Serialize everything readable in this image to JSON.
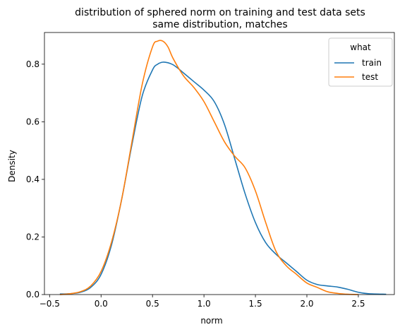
{
  "chart_data": {
    "type": "line",
    "title": "distribution of sphered norm on training and test data sets",
    "subtitle": "same distribution, matches",
    "xlabel": "norm",
    "ylabel": "Density",
    "xlim": [
      -0.55,
      2.85
    ],
    "ylim": [
      0,
      0.91
    ],
    "xticks": [
      -0.5,
      0.0,
      0.5,
      1.0,
      1.5,
      2.0,
      2.5
    ],
    "xtick_labels": [
      "−0.5",
      "0.0",
      "0.5",
      "1.0",
      "1.5",
      "2.0",
      "2.5"
    ],
    "yticks": [
      0.0,
      0.2,
      0.4,
      0.6,
      0.8
    ],
    "ytick_labels": [
      "0.0",
      "0.2",
      "0.4",
      "0.6",
      "0.8"
    ],
    "grid": false,
    "legend": {
      "title": "what",
      "placement": "top-right"
    },
    "series": [
      {
        "name": "train",
        "color": "#1f77b4",
        "x": [
          -0.4,
          -0.3,
          -0.2,
          -0.1,
          0.0,
          0.1,
          0.2,
          0.3,
          0.4,
          0.5,
          0.55,
          0.6,
          0.65,
          0.7,
          0.75,
          0.8,
          0.9,
          1.0,
          1.1,
          1.2,
          1.3,
          1.4,
          1.5,
          1.6,
          1.7,
          1.8,
          1.9,
          2.0,
          2.1,
          2.2,
          2.3,
          2.4,
          2.5,
          2.6,
          2.77
        ],
        "y": [
          0.002,
          0.003,
          0.008,
          0.025,
          0.07,
          0.17,
          0.33,
          0.52,
          0.69,
          0.78,
          0.8,
          0.807,
          0.805,
          0.798,
          0.785,
          0.77,
          0.74,
          0.71,
          0.67,
          0.59,
          0.47,
          0.35,
          0.25,
          0.18,
          0.14,
          0.11,
          0.08,
          0.05,
          0.035,
          0.03,
          0.026,
          0.018,
          0.008,
          0.003,
          0.001
        ]
      },
      {
        "name": "test",
        "color": "#ff7f0e",
        "x": [
          -0.4,
          -0.3,
          -0.2,
          -0.1,
          0.0,
          0.1,
          0.2,
          0.3,
          0.4,
          0.5,
          0.55,
          0.6,
          0.65,
          0.7,
          0.8,
          0.9,
          1.0,
          1.1,
          1.2,
          1.3,
          1.4,
          1.5,
          1.6,
          1.7,
          1.8,
          1.9,
          2.0,
          2.1,
          2.2,
          2.3,
          2.4,
          2.5
        ],
        "y": [
          0.0,
          0.003,
          0.01,
          0.03,
          0.08,
          0.18,
          0.33,
          0.53,
          0.73,
          0.86,
          0.88,
          0.88,
          0.86,
          0.82,
          0.76,
          0.72,
          0.67,
          0.6,
          0.53,
          0.48,
          0.44,
          0.36,
          0.25,
          0.15,
          0.1,
          0.07,
          0.04,
          0.025,
          0.01,
          0.004,
          0.001,
          0.0
        ]
      }
    ]
  }
}
